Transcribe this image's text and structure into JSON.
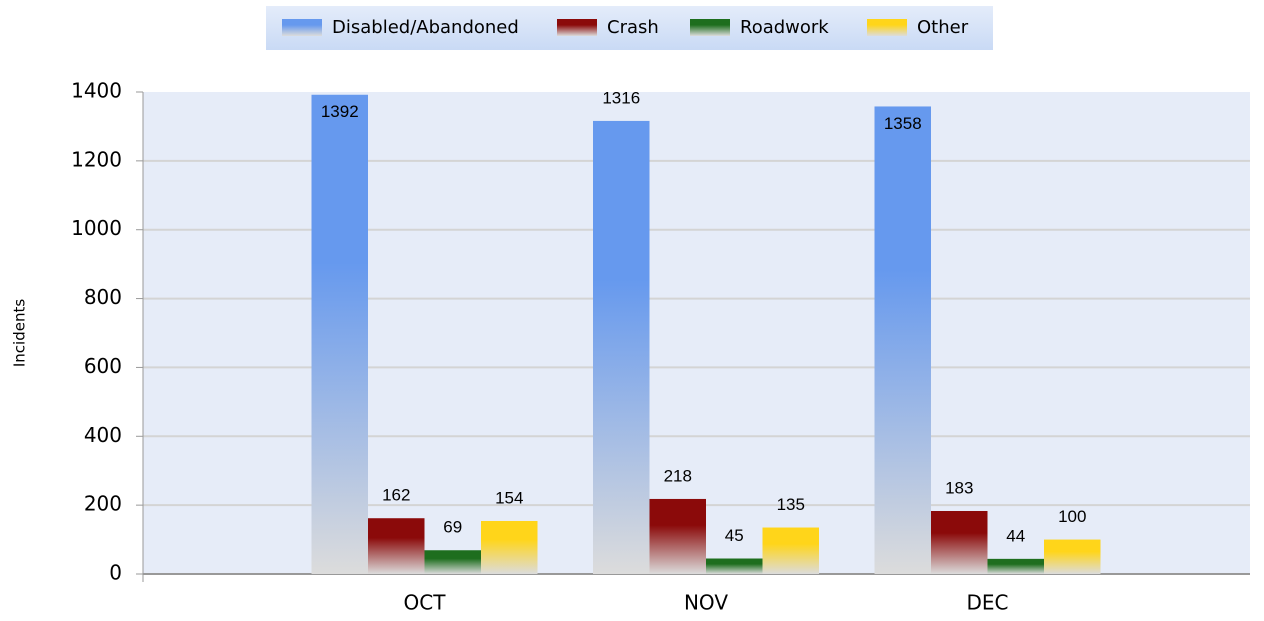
{
  "chart_data": {
    "type": "bar",
    "categories": [
      "OCT",
      "NOV",
      "DEC"
    ],
    "series": [
      {
        "name": "Disabled/Abandoned",
        "color": "#6699ee",
        "values": [
          1392,
          1316,
          1358
        ]
      },
      {
        "name": "Crash",
        "color": "#8b0a0a",
        "values": [
          162,
          218,
          183
        ]
      },
      {
        "name": "Roadwork",
        "color": "#1e6e1e",
        "values": [
          69,
          45,
          44
        ]
      },
      {
        "name": "Other",
        "color": "#ffd51a",
        "values": [
          154,
          135,
          100
        ]
      }
    ],
    "y_label": "Incidents",
    "ylim": [
      0,
      1400
    ],
    "yticks": [
      0,
      200,
      400,
      600,
      800,
      1000,
      1200,
      1400
    ],
    "grid": true,
    "legend": "top"
  }
}
